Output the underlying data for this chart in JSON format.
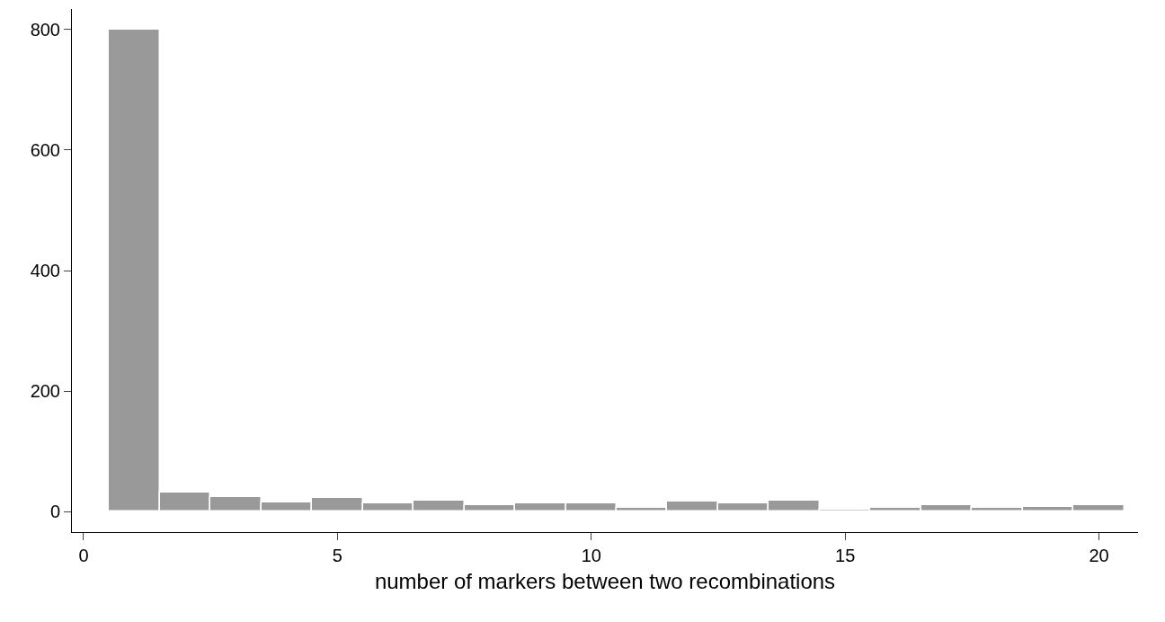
{
  "chart_data": {
    "type": "histogram",
    "xlabel": "number of markers between two recombinations",
    "bins": [
      0.5,
      1.5,
      2.5,
      3.5,
      4.5,
      5.5,
      6.5,
      7.5,
      8.5,
      9.5,
      10.5,
      11.5,
      12.5,
      13.5,
      14.5,
      15.5,
      16.5,
      17.5,
      18.5,
      19.5,
      20.5
    ],
    "values": [
      800,
      31,
      24,
      15,
      23,
      14,
      18,
      11,
      13,
      13,
      7,
      16,
      13,
      18,
      4,
      7,
      11,
      7,
      8,
      11
    ],
    "color": "#999999",
    "xlim": [
      -0.23,
      20.77
    ],
    "ylim": [
      -34,
      834
    ],
    "xticks": [
      0,
      5,
      10,
      15,
      20
    ],
    "yticks": [
      0,
      200,
      400,
      600,
      800
    ]
  }
}
